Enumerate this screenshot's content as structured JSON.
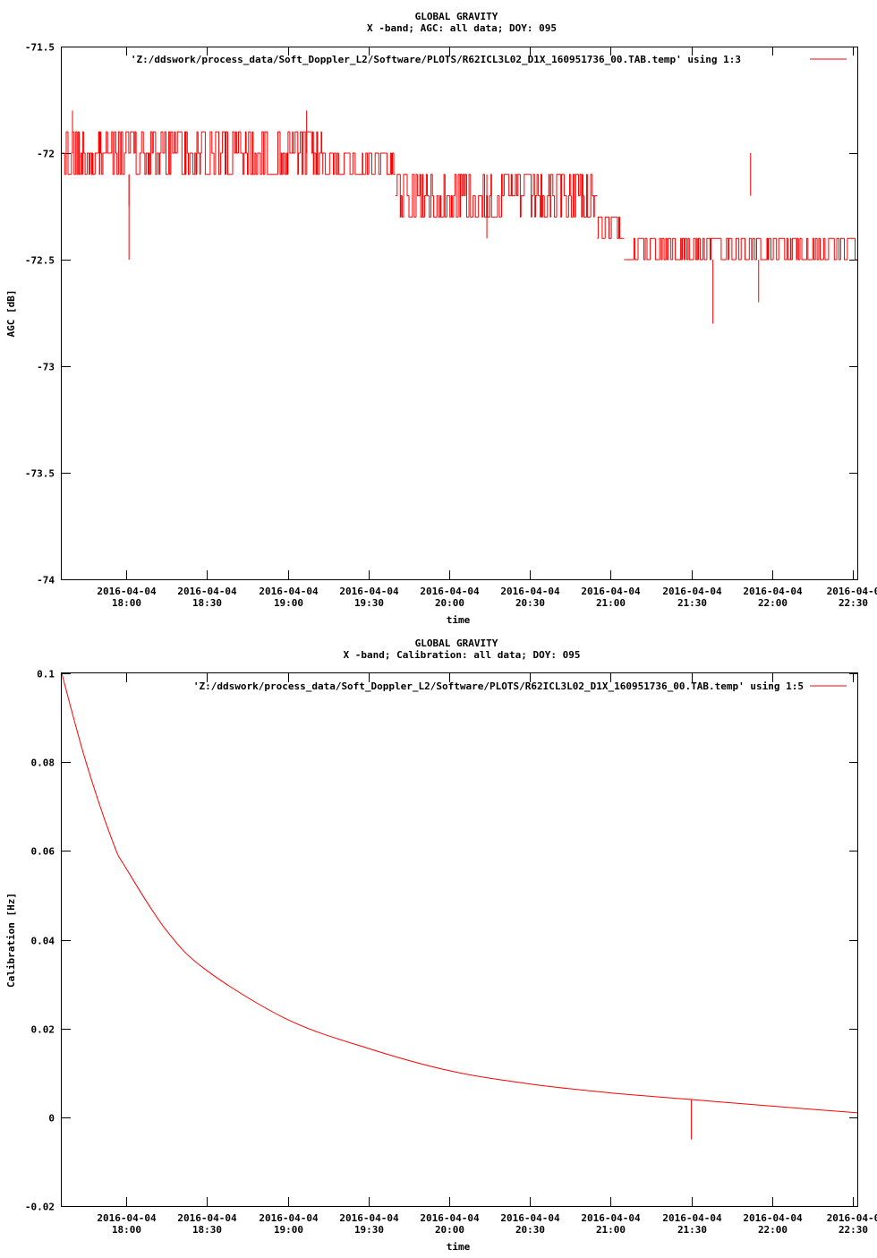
{
  "colors": {
    "series": "#ff0000",
    "axis": "#000000",
    "background": "#ffffff"
  },
  "chart_data": [
    {
      "type": "line",
      "title": "GLOBAL GRAVITY",
      "subtitle": "X -band; AGC: all data; DOY: 095",
      "xlabel": "time",
      "ylabel": "AGC [dB]",
      "ylim": [
        -74,
        -71.5
      ],
      "yticks": [
        "-71.5",
        "-72",
        "-72.5",
        "-73",
        "-73.5",
        "-74"
      ],
      "xticks": [
        {
          "date": "2016-04-04",
          "time": "18:00"
        },
        {
          "date": "2016-04-04",
          "time": "18:30"
        },
        {
          "date": "2016-04-04",
          "time": "19:00"
        },
        {
          "date": "2016-04-04",
          "time": "19:30"
        },
        {
          "date": "2016-04-04",
          "time": "20:00"
        },
        {
          "date": "2016-04-04",
          "time": "20:30"
        },
        {
          "date": "2016-04-04",
          "time": "21:00"
        },
        {
          "date": "2016-04-04",
          "time": "21:30"
        },
        {
          "date": "2016-04-04",
          "time": "22:00"
        },
        {
          "date": "2016-04-0",
          "time": "22:30"
        }
      ],
      "xrange": [
        "2016-04-04 17:36",
        "2016-04-04 22:32"
      ],
      "legend_position": "top-right",
      "series": [
        {
          "name": "'Z:/ddswork/process_data/Soft_Doppler_L2/Software/PLOTS/R62ICL3L02_D1X_160951736_00.TAB.temp' using 1:3",
          "segments": [
            {
              "x": [
                "2016-04-04 17:36",
                "2016-04-04 19:13"
              ],
              "levels": [
                -71.9,
                -72.0,
                -72.1
              ]
            },
            {
              "x": [
                "2016-04-04 19:13",
                "2016-04-04 19:40"
              ],
              "levels": [
                -72.0,
                -72.1
              ]
            },
            {
              "x": [
                "2016-04-04 19:40",
                "2016-04-04 20:55"
              ],
              "levels": [
                -72.1,
                -72.2,
                -72.3
              ]
            },
            {
              "x": [
                "2016-04-04 20:55",
                "2016-04-04 21:05"
              ],
              "levels": [
                -72.3,
                -72.4
              ]
            },
            {
              "x": [
                "2016-04-04 21:05",
                "2016-04-04 22:32"
              ],
              "levels": [
                -72.4,
                -72.5
              ]
            }
          ],
          "spikes": [
            {
              "x": "2016-04-04 18:01",
              "y": -72.5
            },
            {
              "x": "2016-04-04 18:01",
              "y": -72.25
            },
            {
              "x": "2016-04-04 19:07",
              "y": -71.8
            },
            {
              "x": "2016-04-04 17:40",
              "y": -71.8
            },
            {
              "x": "2016-04-04 20:14",
              "y": -72.4
            },
            {
              "x": "2016-04-04 21:38",
              "y": -72.8
            },
            {
              "x": "2016-04-04 21:55",
              "y": -72.7
            },
            {
              "x": "2016-04-04 21:52",
              "y": -72.2
            }
          ]
        }
      ]
    },
    {
      "type": "line",
      "title": "GLOBAL GRAVITY",
      "subtitle": "X -band; Calibration: all data; DOY: 095",
      "xlabel": "time",
      "ylabel": "Calibration [Hz]",
      "ylim": [
        -0.02,
        0.1
      ],
      "yticks": [
        "0.1",
        "0.08",
        "0.06",
        "0.04",
        "0.02",
        "0",
        "-0.02"
      ],
      "xticks": [
        {
          "date": "2016-04-04",
          "time": "18:00"
        },
        {
          "date": "2016-04-04",
          "time": "18:30"
        },
        {
          "date": "2016-04-04",
          "time": "19:00"
        },
        {
          "date": "2016-04-04",
          "time": "19:30"
        },
        {
          "date": "2016-04-04",
          "time": "20:00"
        },
        {
          "date": "2016-04-04",
          "time": "20:30"
        },
        {
          "date": "2016-04-04",
          "time": "21:00"
        },
        {
          "date": "2016-04-04",
          "time": "21:30"
        },
        {
          "date": "2016-04-04",
          "time": "22:00"
        },
        {
          "date": "2016-04-0",
          "time": "22:30"
        }
      ],
      "xrange": [
        "2016-04-04 17:36",
        "2016-04-04 22:32"
      ],
      "legend_position": "top-right",
      "series": [
        {
          "name": "'Z:/ddswork/process_data/Soft_Doppler_L2/Software/PLOTS/R62ICL3L02_D1X_160951736_00.TAB.temp' using 1:5",
          "points": [
            {
              "x": "2016-04-04 17:36",
              "y": 0.1
            },
            {
              "x": "2016-04-04 17:45",
              "y": 0.08
            },
            {
              "x": "2016-04-04 17:55",
              "y": 0.062
            },
            {
              "x": "2016-04-04 18:00",
              "y": 0.056
            },
            {
              "x": "2016-04-04 18:15",
              "y": 0.042
            },
            {
              "x": "2016-04-04 18:30",
              "y": 0.033
            },
            {
              "x": "2016-04-04 19:00",
              "y": 0.022
            },
            {
              "x": "2016-04-04 19:30",
              "y": 0.0155
            },
            {
              "x": "2016-04-04 20:00",
              "y": 0.0105
            },
            {
              "x": "2016-04-04 20:30",
              "y": 0.0075
            },
            {
              "x": "2016-04-04 21:00",
              "y": 0.0055
            },
            {
              "x": "2016-04-04 21:30",
              "y": 0.004
            },
            {
              "x": "2016-04-04 22:00",
              "y": 0.0025
            },
            {
              "x": "2016-04-04 22:32",
              "y": 0.001
            }
          ],
          "spikes": [
            {
              "x": "2016-04-04 21:30",
              "y": -0.005
            }
          ]
        }
      ]
    }
  ]
}
